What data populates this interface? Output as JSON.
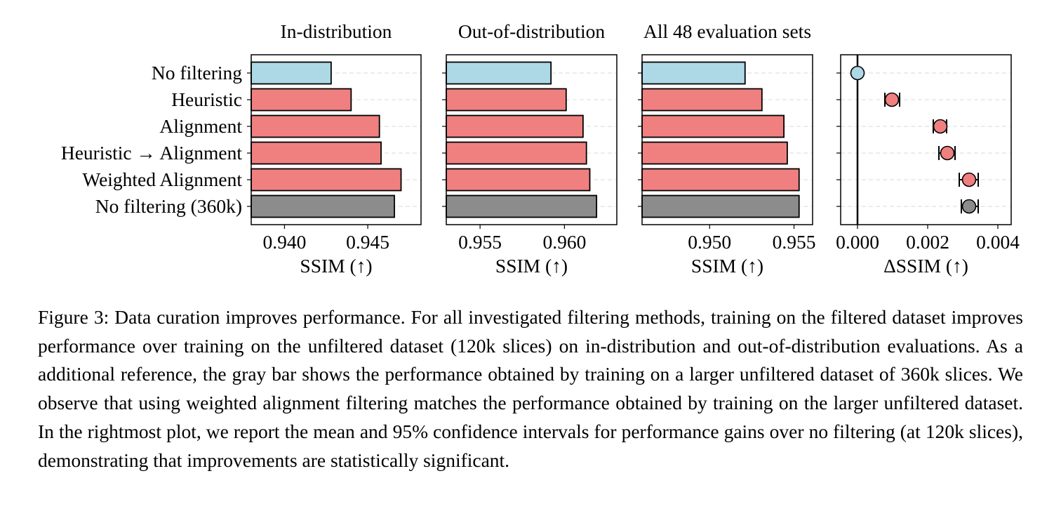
{
  "figure": {
    "categories": [
      "No filtering",
      "Heuristic",
      "Alignment",
      "Heuristic → Alignment",
      "Weighted Alignment",
      "No filtering (360k)"
    ],
    "colors": {
      "baseline": "#add8e6",
      "filtered": "#f08080",
      "reference": "#8c8c8c",
      "edge": "#000000",
      "grid": "#d9d9d9"
    }
  },
  "chart_data": [
    {
      "type": "bar",
      "orientation": "horizontal",
      "title": "In-distribution",
      "xlabel": "SSIM (↑)",
      "categories": [
        "No filtering",
        "Heuristic",
        "Alignment",
        "Heuristic → Alignment",
        "Weighted Alignment",
        "No filtering (360k)"
      ],
      "values": [
        0.9428,
        0.944,
        0.9457,
        0.9458,
        0.947,
        0.9466
      ],
      "colors": [
        "#add8e6",
        "#f08080",
        "#f08080",
        "#f08080",
        "#f08080",
        "#8c8c8c"
      ],
      "xlim": [
        0.938,
        0.9482
      ],
      "xticks": [
        0.94,
        0.945
      ],
      "xtick_labels": [
        "0.940",
        "0.945"
      ],
      "grid": "y-dashed"
    },
    {
      "type": "bar",
      "orientation": "horizontal",
      "title": "Out-of-distribution",
      "xlabel": "SSIM (↑)",
      "categories": [
        "No filtering",
        "Heuristic",
        "Alignment",
        "Heuristic → Alignment",
        "Weighted Alignment",
        "No filtering (360k)"
      ],
      "values": [
        0.9592,
        0.9601,
        0.9611,
        0.9613,
        0.9615,
        0.9619
      ],
      "colors": [
        "#add8e6",
        "#f08080",
        "#f08080",
        "#f08080",
        "#f08080",
        "#8c8c8c"
      ],
      "xlim": [
        0.953,
        0.9631
      ],
      "xticks": [
        0.955,
        0.96
      ],
      "xtick_labels": [
        "0.955",
        "0.960"
      ],
      "grid": "y-dashed"
    },
    {
      "type": "bar",
      "orientation": "horizontal",
      "title": "All 48 evaluation sets",
      "xlabel": "SSIM (↑)",
      "categories": [
        "No filtering",
        "Heuristic",
        "Alignment",
        "Heuristic → Alignment",
        "Weighted Alignment",
        "No filtering (360k)"
      ],
      "values": [
        0.9521,
        0.9531,
        0.9544,
        0.9546,
        0.9553,
        0.9553
      ],
      "colors": [
        "#add8e6",
        "#f08080",
        "#f08080",
        "#f08080",
        "#f08080",
        "#8c8c8c"
      ],
      "xlim": [
        0.946,
        0.9561
      ],
      "xticks": [
        0.95,
        0.955
      ],
      "xtick_labels": [
        "0.950",
        "0.955"
      ],
      "grid": "y-dashed"
    },
    {
      "type": "scatter",
      "subtype": "errorbar",
      "title": "",
      "xlabel": "ΔSSIM (↑)",
      "categories": [
        "No filtering",
        "Heuristic",
        "Alignment",
        "Heuristic → Alignment",
        "Weighted Alignment",
        "No filtering (360k)"
      ],
      "values": [
        0.0,
        0.00098,
        0.00236,
        0.00256,
        0.00318,
        0.00318
      ],
      "ci_low": [
        null,
        0.00078,
        0.00216,
        0.00232,
        0.0029,
        0.00296
      ],
      "ci_high": [
        null,
        0.0012,
        0.00254,
        0.00278,
        0.00344,
        0.00344
      ],
      "colors": [
        "#add8e6",
        "#f08080",
        "#f08080",
        "#f08080",
        "#f08080",
        "#8c8c8c"
      ],
      "xlim": [
        -0.00048,
        0.00438
      ],
      "xticks": [
        0.0,
        0.002,
        0.004
      ],
      "xtick_labels": [
        "0.000",
        "0.002",
        "0.004"
      ],
      "zero_line": true,
      "grid": "y-dashed"
    }
  ],
  "caption": "Figure 3: Data curation improves performance. For all investigated filtering methods, training on the filtered dataset improves performance over training on the unfiltered dataset (120k slices) on in-distribution and out-of-distribution evaluations. As a additional reference, the gray bar shows the performance obtained by training on a larger unfiltered dataset of 360k slices. We observe that using weighted alignment filtering matches the performance obtained by training on the larger unfiltered dataset. In the rightmost plot, we report the mean and 95% confidence intervals for performance gains over no filtering (at 120k slices), demonstrating that improvements are statistically significant."
}
